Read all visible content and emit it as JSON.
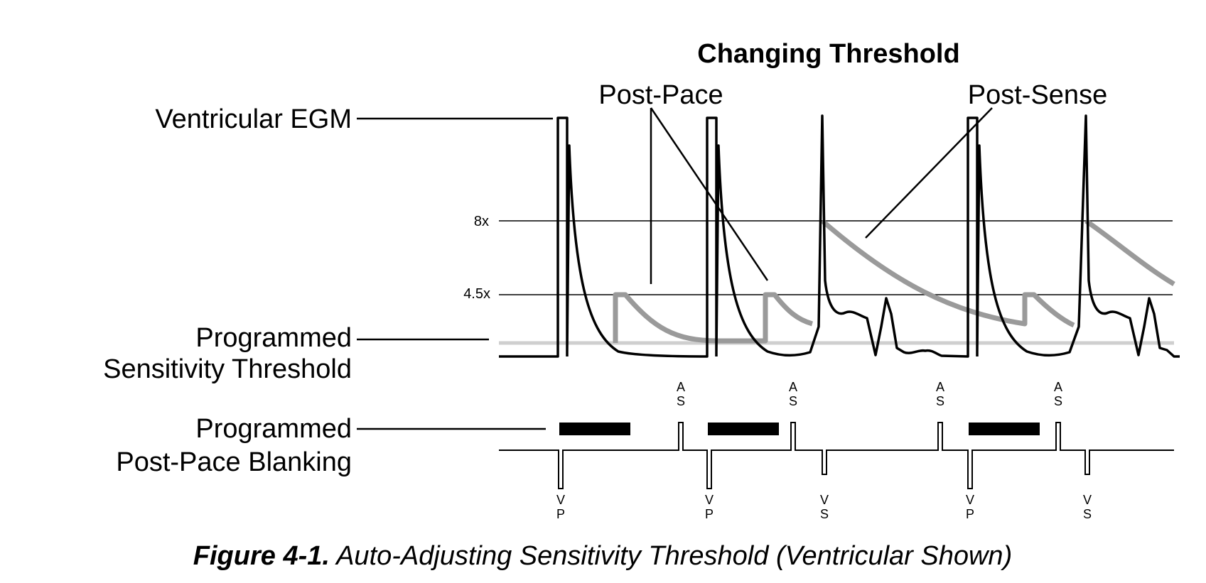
{
  "title": "Changing Threshold",
  "callouts": {
    "post_pace": "Post-Pace",
    "post_sense": "Post-Sense"
  },
  "labels": {
    "ventricular_egm": "Ventricular EGM",
    "programmed_sensitivity_line1": "Programmed",
    "programmed_sensitivity_line2": "Sensitivity Threshold",
    "programmed_blanking_line1": "Programmed",
    "programmed_blanking_line2": "Post-Pace Blanking"
  },
  "threshold_levels": [
    {
      "label": "8x",
      "multiple": 8
    },
    {
      "label": "4.5x",
      "multiple": 4.5
    }
  ],
  "event_markers": [
    {
      "type": "VP",
      "top": "V",
      "bottom": "P"
    },
    {
      "type": "AS",
      "top": "A",
      "bottom": "S"
    },
    {
      "type": "VP",
      "top": "V",
      "bottom": "P"
    },
    {
      "type": "AS",
      "top": "A",
      "bottom": "S"
    },
    {
      "type": "VS",
      "top": "V",
      "bottom": "S"
    },
    {
      "type": "AS",
      "top": "A",
      "bottom": "S"
    },
    {
      "type": "VP",
      "top": "V",
      "bottom": "P"
    },
    {
      "type": "AS",
      "top": "A",
      "bottom": "S"
    },
    {
      "type": "VS",
      "top": "V",
      "bottom": "S"
    }
  ],
  "caption": {
    "number": "Figure 4-1.",
    "text": " Auto-Adjusting Sensitivity Threshold (Ventricular Shown)"
  },
  "colors": {
    "trace": "#000000",
    "threshold": "#9a9a9a",
    "sensitivity": "#cfcfcf"
  }
}
